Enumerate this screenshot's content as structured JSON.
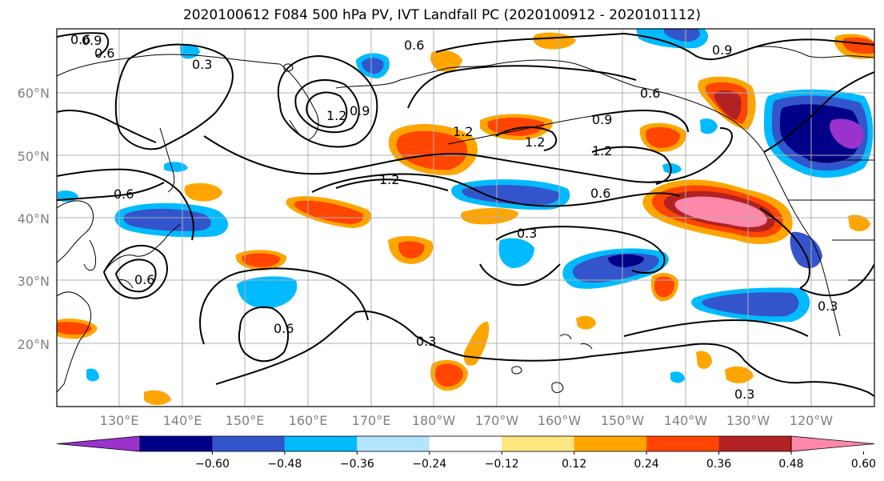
{
  "title": "2020100612 F084 500 hPa PV, IVT Landfall PC (2020100912 - 2020101112)",
  "map": {
    "lat_labels": [
      "20°N",
      "30°N",
      "40°N",
      "50°N",
      "60°N"
    ],
    "lon_labels": [
      "130°E",
      "140°E",
      "150°E",
      "160°E",
      "170°E",
      "180°W",
      "170°W",
      "160°W",
      "150°W",
      "140°W",
      "130°W",
      "120°W"
    ],
    "contour_labels": [
      "0.6",
      "0.9",
      "0.6",
      "1.2",
      "0.9",
      "0.6",
      "1.2",
      "1.2",
      "0.9",
      "1.2",
      "1.2",
      "0.6",
      "0.6",
      "0.3",
      "0.6",
      "0.6",
      "0.3",
      "0.3",
      "0.3",
      "0.6",
      "0.9",
      "0.3"
    ],
    "colors": {
      "land_outline": "#000000",
      "grid": "#b0b0b0",
      "contour": "#000000"
    }
  },
  "colorbar": {
    "colors": [
      "#9933cc",
      "#000088",
      "#3355cc",
      "#00bbff",
      "#b3e5ff",
      "#ffffff",
      "#ffe680",
      "#ffa500",
      "#ff4500",
      "#b22222",
      "#ff88aa"
    ],
    "tick_labels": [
      "−0.60",
      "−0.48",
      "−0.36",
      "−0.24",
      "−0.12",
      "0.12",
      "0.24",
      "0.36",
      "0.48",
      "0.60"
    ]
  }
}
